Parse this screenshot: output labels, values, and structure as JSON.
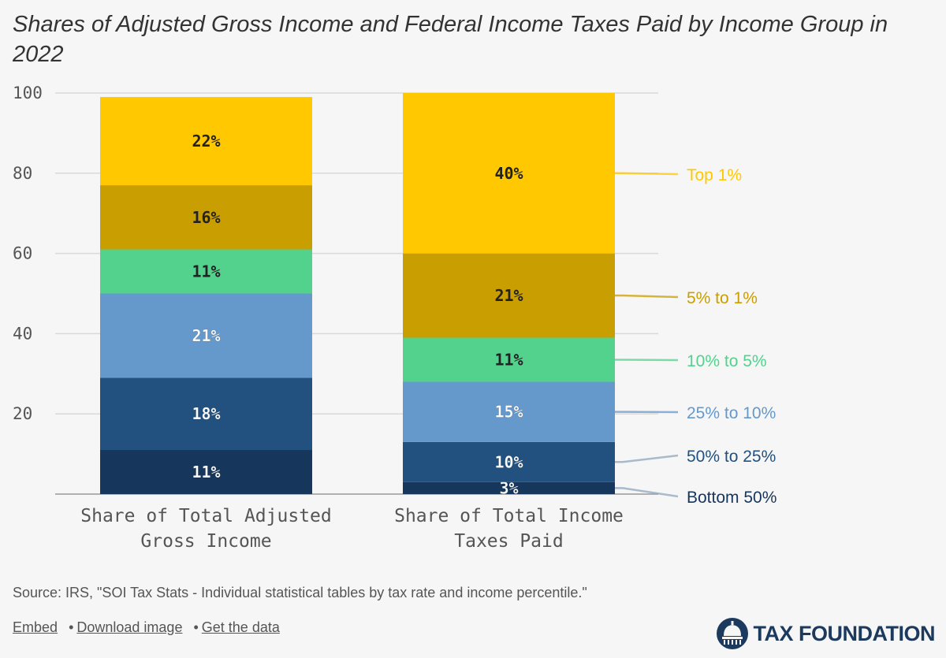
{
  "title": "Shares of Adjusted Gross Income and Federal Income Taxes Paid by Income Group in 2022",
  "chart_data": {
    "type": "bar",
    "stacked": true,
    "categories": [
      "Share of Total Adjusted Gross Income",
      "Share of Total Income Taxes Paid"
    ],
    "category_label_lines": [
      [
        "Share of Total Adjusted",
        "Gross Income"
      ],
      [
        "Share of Total Income",
        "Taxes Paid"
      ]
    ],
    "ylim": [
      0,
      100
    ],
    "yticks": [
      20,
      40,
      60,
      80,
      100
    ],
    "series": [
      {
        "name": "Bottom 50%",
        "color": "#16365b",
        "values": [
          11,
          3
        ],
        "labels": [
          "11%",
          "3%"
        ]
      },
      {
        "name": "50% to 25%",
        "color": "#22517f",
        "values": [
          18,
          10
        ],
        "labels": [
          "18%",
          "10%"
        ]
      },
      {
        "name": "25% to 10%",
        "color": "#6598cb",
        "values": [
          21,
          15
        ],
        "labels": [
          "21%",
          "15%"
        ]
      },
      {
        "name": "10% to 5%",
        "color": "#52d28d",
        "values": [
          11,
          11
        ],
        "labels": [
          "11%",
          "11%"
        ]
      },
      {
        "name": "5% to 1%",
        "color": "#c99e00",
        "values": [
          16,
          21
        ],
        "labels": [
          "16%",
          "21%"
        ]
      },
      {
        "name": "Top 1%",
        "color": "#ffc800",
        "values": [
          22,
          40
        ],
        "labels": [
          "22%",
          "40%"
        ]
      }
    ],
    "legend": "right-inline"
  },
  "source": "Source: IRS, \"SOI Tax Stats - Individual statistical tables by tax rate and income percentile.\"",
  "footer": {
    "embed": "Embed",
    "bullet": "•",
    "download": "Download image",
    "get_data": "Get the data"
  },
  "brand": {
    "name": "TAX FOUNDATION",
    "logo_icon": "capitol-dome-icon",
    "color": "#1c3a5e"
  }
}
